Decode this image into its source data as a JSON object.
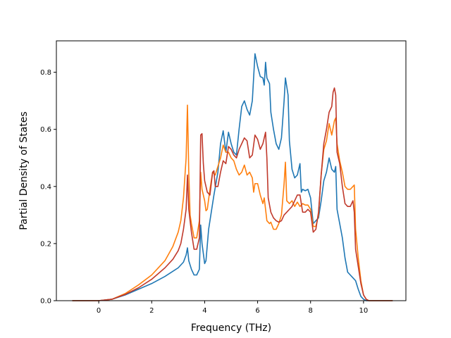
{
  "chart_data": {
    "type": "line",
    "title": "",
    "xlabel": "Frequency (THz)",
    "ylabel": "Partial Density of States",
    "xlim": [
      -1.6,
      11.6
    ],
    "ylim": [
      0.0,
      0.91
    ],
    "xticks": [
      0,
      2,
      4,
      6,
      8,
      10
    ],
    "yticks": [
      0.0,
      0.2,
      0.4,
      0.6,
      0.8
    ],
    "xtick_labels": [
      "0",
      "2",
      "4",
      "6",
      "8",
      "10"
    ],
    "ytick_labels": [
      "0.0",
      "0.2",
      "0.4",
      "0.6",
      "0.8"
    ],
    "grid": false,
    "legend": "none",
    "series": [
      {
        "color": "#1f77b4",
        "points": [
          [
            -1.0,
            0.0
          ],
          [
            0.0,
            0.0
          ],
          [
            0.5,
            0.005
          ],
          [
            1.0,
            0.02
          ],
          [
            1.5,
            0.04
          ],
          [
            2.0,
            0.06
          ],
          [
            2.5,
            0.085
          ],
          [
            3.0,
            0.115
          ],
          [
            3.2,
            0.135
          ],
          [
            3.3,
            0.16
          ],
          [
            3.35,
            0.185
          ],
          [
            3.4,
            0.14
          ],
          [
            3.5,
            0.11
          ],
          [
            3.6,
            0.09
          ],
          [
            3.7,
            0.09
          ],
          [
            3.8,
            0.11
          ],
          [
            3.85,
            0.265
          ],
          [
            3.9,
            0.2
          ],
          [
            4.0,
            0.13
          ],
          [
            4.05,
            0.14
          ],
          [
            4.15,
            0.25
          ],
          [
            4.25,
            0.31
          ],
          [
            4.35,
            0.37
          ],
          [
            4.5,
            0.45
          ],
          [
            4.6,
            0.55
          ],
          [
            4.7,
            0.595
          ],
          [
            4.8,
            0.52
          ],
          [
            4.9,
            0.59
          ],
          [
            5.0,
            0.55
          ],
          [
            5.1,
            0.52
          ],
          [
            5.2,
            0.51
          ],
          [
            5.3,
            0.6
          ],
          [
            5.4,
            0.68
          ],
          [
            5.5,
            0.7
          ],
          [
            5.6,
            0.67
          ],
          [
            5.7,
            0.65
          ],
          [
            5.8,
            0.7
          ],
          [
            5.9,
            0.865
          ],
          [
            6.0,
            0.82
          ],
          [
            6.1,
            0.785
          ],
          [
            6.2,
            0.78
          ],
          [
            6.25,
            0.755
          ],
          [
            6.3,
            0.835
          ],
          [
            6.35,
            0.78
          ],
          [
            6.45,
            0.76
          ],
          [
            6.5,
            0.66
          ],
          [
            6.6,
            0.6
          ],
          [
            6.7,
            0.55
          ],
          [
            6.8,
            0.53
          ],
          [
            6.9,
            0.57
          ],
          [
            7.0,
            0.7
          ],
          [
            7.05,
            0.78
          ],
          [
            7.15,
            0.72
          ],
          [
            7.2,
            0.56
          ],
          [
            7.3,
            0.46
          ],
          [
            7.4,
            0.43
          ],
          [
            7.5,
            0.44
          ],
          [
            7.6,
            0.48
          ],
          [
            7.65,
            0.38
          ],
          [
            7.7,
            0.39
          ],
          [
            7.8,
            0.385
          ],
          [
            7.9,
            0.39
          ],
          [
            8.0,
            0.36
          ],
          [
            8.1,
            0.27
          ],
          [
            8.2,
            0.28
          ],
          [
            8.3,
            0.29
          ],
          [
            8.4,
            0.35
          ],
          [
            8.5,
            0.42
          ],
          [
            8.6,
            0.45
          ],
          [
            8.7,
            0.5
          ],
          [
            8.8,
            0.46
          ],
          [
            8.9,
            0.45
          ],
          [
            8.95,
            0.47
          ],
          [
            9.0,
            0.32
          ],
          [
            9.1,
            0.27
          ],
          [
            9.2,
            0.22
          ],
          [
            9.3,
            0.15
          ],
          [
            9.4,
            0.1
          ],
          [
            9.5,
            0.09
          ],
          [
            9.6,
            0.08
          ],
          [
            9.7,
            0.07
          ],
          [
            9.8,
            0.04
          ],
          [
            9.9,
            0.015
          ],
          [
            10.0,
            0.005
          ],
          [
            10.1,
            0.0
          ],
          [
            11.1,
            0.0
          ]
        ]
      },
      {
        "color": "#ff7f0e",
        "points": [
          [
            -1.0,
            0.0
          ],
          [
            0.0,
            0.0
          ],
          [
            0.5,
            0.005
          ],
          [
            1.0,
            0.025
          ],
          [
            1.5,
            0.055
          ],
          [
            2.0,
            0.09
          ],
          [
            2.5,
            0.14
          ],
          [
            2.8,
            0.19
          ],
          [
            3.0,
            0.24
          ],
          [
            3.1,
            0.28
          ],
          [
            3.2,
            0.36
          ],
          [
            3.3,
            0.5
          ],
          [
            3.35,
            0.685
          ],
          [
            3.4,
            0.45
          ],
          [
            3.45,
            0.3
          ],
          [
            3.5,
            0.27
          ],
          [
            3.6,
            0.22
          ],
          [
            3.7,
            0.22
          ],
          [
            3.8,
            0.28
          ],
          [
            3.85,
            0.45
          ],
          [
            3.9,
            0.39
          ],
          [
            4.0,
            0.35
          ],
          [
            4.05,
            0.315
          ],
          [
            4.1,
            0.32
          ],
          [
            4.2,
            0.39
          ],
          [
            4.3,
            0.45
          ],
          [
            4.4,
            0.44
          ],
          [
            4.5,
            0.47
          ],
          [
            4.6,
            0.5
          ],
          [
            4.7,
            0.545
          ],
          [
            4.8,
            0.52
          ],
          [
            4.9,
            0.52
          ],
          [
            5.0,
            0.5
          ],
          [
            5.1,
            0.49
          ],
          [
            5.2,
            0.46
          ],
          [
            5.3,
            0.44
          ],
          [
            5.4,
            0.45
          ],
          [
            5.5,
            0.475
          ],
          [
            5.6,
            0.44
          ],
          [
            5.7,
            0.45
          ],
          [
            5.8,
            0.43
          ],
          [
            5.85,
            0.38
          ],
          [
            5.9,
            0.41
          ],
          [
            6.0,
            0.41
          ],
          [
            6.1,
            0.37
          ],
          [
            6.2,
            0.34
          ],
          [
            6.25,
            0.36
          ],
          [
            6.35,
            0.28
          ],
          [
            6.45,
            0.27
          ],
          [
            6.5,
            0.275
          ],
          [
            6.6,
            0.25
          ],
          [
            6.7,
            0.25
          ],
          [
            6.8,
            0.27
          ],
          [
            6.9,
            0.3
          ],
          [
            7.0,
            0.41
          ],
          [
            7.05,
            0.485
          ],
          [
            7.1,
            0.35
          ],
          [
            7.2,
            0.34
          ],
          [
            7.3,
            0.35
          ],
          [
            7.4,
            0.33
          ],
          [
            7.5,
            0.345
          ],
          [
            7.6,
            0.33
          ],
          [
            7.7,
            0.34
          ],
          [
            7.8,
            0.335
          ],
          [
            7.9,
            0.335
          ],
          [
            8.0,
            0.32
          ],
          [
            8.1,
            0.26
          ],
          [
            8.2,
            0.26
          ],
          [
            8.3,
            0.3
          ],
          [
            8.4,
            0.44
          ],
          [
            8.5,
            0.53
          ],
          [
            8.6,
            0.56
          ],
          [
            8.7,
            0.62
          ],
          [
            8.8,
            0.58
          ],
          [
            8.9,
            0.63
          ],
          [
            8.95,
            0.64
          ],
          [
            9.0,
            0.55
          ],
          [
            9.1,
            0.49
          ],
          [
            9.2,
            0.45
          ],
          [
            9.3,
            0.4
          ],
          [
            9.4,
            0.39
          ],
          [
            9.5,
            0.39
          ],
          [
            9.6,
            0.4
          ],
          [
            9.65,
            0.405
          ],
          [
            9.7,
            0.25
          ],
          [
            9.8,
            0.15
          ],
          [
            9.9,
            0.07
          ],
          [
            10.0,
            0.02
          ],
          [
            10.1,
            0.005
          ],
          [
            10.2,
            0.0
          ],
          [
            11.1,
            0.0
          ]
        ]
      },
      {
        "color": "#c0392b",
        "points": [
          [
            -1.0,
            0.0
          ],
          [
            0.0,
            0.0
          ],
          [
            0.5,
            0.005
          ],
          [
            1.0,
            0.022
          ],
          [
            1.5,
            0.045
          ],
          [
            2.0,
            0.075
          ],
          [
            2.5,
            0.115
          ],
          [
            2.8,
            0.145
          ],
          [
            3.0,
            0.175
          ],
          [
            3.1,
            0.2
          ],
          [
            3.2,
            0.25
          ],
          [
            3.3,
            0.32
          ],
          [
            3.35,
            0.44
          ],
          [
            3.4,
            0.32
          ],
          [
            3.5,
            0.24
          ],
          [
            3.6,
            0.18
          ],
          [
            3.7,
            0.18
          ],
          [
            3.8,
            0.22
          ],
          [
            3.85,
            0.58
          ],
          [
            3.9,
            0.585
          ],
          [
            3.95,
            0.48
          ],
          [
            4.0,
            0.42
          ],
          [
            4.1,
            0.38
          ],
          [
            4.2,
            0.37
          ],
          [
            4.3,
            0.45
          ],
          [
            4.35,
            0.455
          ],
          [
            4.4,
            0.4
          ],
          [
            4.5,
            0.4
          ],
          [
            4.6,
            0.45
          ],
          [
            4.7,
            0.49
          ],
          [
            4.8,
            0.48
          ],
          [
            4.9,
            0.54
          ],
          [
            5.0,
            0.53
          ],
          [
            5.1,
            0.51
          ],
          [
            5.2,
            0.5
          ],
          [
            5.3,
            0.53
          ],
          [
            5.4,
            0.55
          ],
          [
            5.5,
            0.57
          ],
          [
            5.6,
            0.56
          ],
          [
            5.7,
            0.5
          ],
          [
            5.8,
            0.51
          ],
          [
            5.9,
            0.58
          ],
          [
            6.0,
            0.565
          ],
          [
            6.1,
            0.53
          ],
          [
            6.2,
            0.55
          ],
          [
            6.3,
            0.59
          ],
          [
            6.35,
            0.5
          ],
          [
            6.4,
            0.36
          ],
          [
            6.5,
            0.31
          ],
          [
            6.6,
            0.29
          ],
          [
            6.7,
            0.28
          ],
          [
            6.8,
            0.275
          ],
          [
            6.9,
            0.28
          ],
          [
            7.0,
            0.3
          ],
          [
            7.1,
            0.31
          ],
          [
            7.2,
            0.32
          ],
          [
            7.3,
            0.33
          ],
          [
            7.4,
            0.35
          ],
          [
            7.5,
            0.37
          ],
          [
            7.6,
            0.37
          ],
          [
            7.7,
            0.31
          ],
          [
            7.8,
            0.31
          ],
          [
            7.9,
            0.32
          ],
          [
            8.0,
            0.31
          ],
          [
            8.1,
            0.24
          ],
          [
            8.2,
            0.25
          ],
          [
            8.3,
            0.31
          ],
          [
            8.4,
            0.44
          ],
          [
            8.5,
            0.55
          ],
          [
            8.6,
            0.6
          ],
          [
            8.7,
            0.66
          ],
          [
            8.8,
            0.68
          ],
          [
            8.85,
            0.73
          ],
          [
            8.9,
            0.745
          ],
          [
            8.95,
            0.72
          ],
          [
            9.0,
            0.52
          ],
          [
            9.1,
            0.48
          ],
          [
            9.2,
            0.4
          ],
          [
            9.3,
            0.34
          ],
          [
            9.4,
            0.33
          ],
          [
            9.5,
            0.33
          ],
          [
            9.6,
            0.35
          ],
          [
            9.65,
            0.31
          ],
          [
            9.7,
            0.18
          ],
          [
            9.8,
            0.12
          ],
          [
            9.9,
            0.06
          ],
          [
            10.0,
            0.02
          ],
          [
            10.1,
            0.005
          ],
          [
            10.2,
            0.0
          ],
          [
            11.1,
            0.0
          ]
        ]
      }
    ]
  }
}
